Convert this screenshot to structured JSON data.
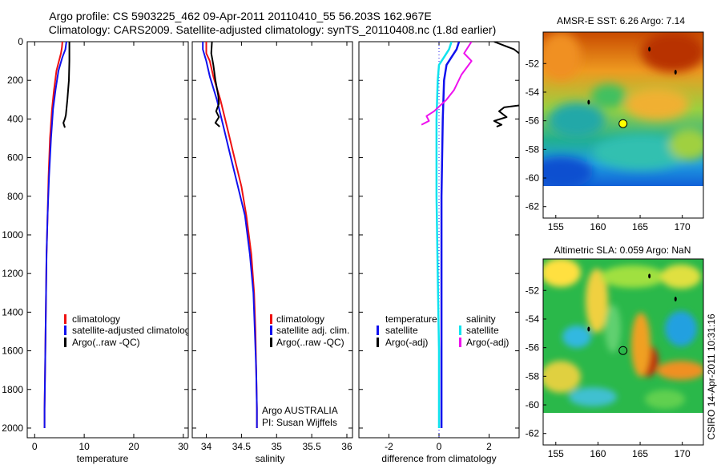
{
  "header": {
    "line1": "Argo profile: CS 5903225_462 09-Apr-2011 20110410_55 56.203S 162.967E",
    "line2": "Climatology: CARS2009. Satellite-adjusted climatology: synTS_20110408.nc (1.8d earlier)"
  },
  "colors": {
    "climatology": "#ee1111",
    "satellite": "#1111ee",
    "argo": "#000000",
    "satellite_salinity": "#11e3ee",
    "argo_salinity": "#ee11ee"
  },
  "chart_data": [
    {
      "type": "line",
      "id": "temperature",
      "xlabel": "temperature",
      "ylim": [
        2050,
        0
      ],
      "xlim": [
        -1.5,
        31
      ],
      "xticks": [
        0,
        10,
        20,
        30
      ],
      "yticks": [
        0,
        200,
        400,
        600,
        800,
        1000,
        1200,
        1400,
        1600,
        1800,
        2000
      ],
      "legend": [
        "climatology",
        "satellite-adjusted climatology",
        "Argo(..raw -QC)"
      ],
      "series": [
        {
          "name": "climatology",
          "points": [
            [
              5.6,
              0
            ],
            [
              5.5,
              30
            ],
            [
              5.3,
              60
            ],
            [
              4.9,
              100
            ],
            [
              4.4,
              150
            ],
            [
              3.9,
              250
            ],
            [
              3.5,
              350
            ],
            [
              3.1,
              500
            ],
            [
              2.8,
              700
            ],
            [
              2.6,
              900
            ],
            [
              2.4,
              1100
            ],
            [
              2.3,
              1300
            ],
            [
              2.2,
              1500
            ],
            [
              2.1,
              1700
            ],
            [
              2.0,
              1900
            ],
            [
              2.0,
              2000
            ]
          ]
        },
        {
          "name": "satellite-adjusted climatology",
          "points": [
            [
              6.4,
              0
            ],
            [
              6.2,
              40
            ],
            [
              5.6,
              80
            ],
            [
              4.8,
              150
            ],
            [
              4.2,
              250
            ],
            [
              3.7,
              350
            ],
            [
              3.3,
              500
            ],
            [
              2.9,
              700
            ],
            [
              2.6,
              900
            ],
            [
              2.4,
              1100
            ],
            [
              2.3,
              1300
            ],
            [
              2.2,
              1500
            ],
            [
              2.1,
              1700
            ],
            [
              2.0,
              1900
            ],
            [
              2.0,
              2000
            ]
          ]
        },
        {
          "name": "Argo(..raw -QC)",
          "points": [
            [
              7.0,
              0
            ],
            [
              7.0,
              100
            ],
            [
              6.9,
              200
            ],
            [
              6.6,
              300
            ],
            [
              6.3,
              380
            ],
            [
              6.1,
              400
            ],
            [
              5.8,
              420
            ],
            [
              6.1,
              445
            ]
          ]
        }
      ]
    },
    {
      "type": "line",
      "id": "salinity",
      "xlabel": "salinity",
      "ylim": [
        2050,
        0
      ],
      "xlim": [
        33.8,
        36.08
      ],
      "xticks": [
        34,
        34.5,
        35,
        35.5,
        36
      ],
      "legend": [
        "climatology",
        "satellite adj. clim.",
        "Argo(..raw -QC)"
      ],
      "annotation": [
        "Argo AUSTRALIA",
        "PI: Susan Wijffels"
      ],
      "series": [
        {
          "name": "climatology",
          "points": [
            [
              34.0,
              0
            ],
            [
              34.0,
              60
            ],
            [
              34.05,
              100
            ],
            [
              34.1,
              180
            ],
            [
              34.2,
              300
            ],
            [
              34.3,
              450
            ],
            [
              34.4,
              600
            ],
            [
              34.5,
              750
            ],
            [
              34.57,
              900
            ],
            [
              34.64,
              1100
            ],
            [
              34.68,
              1300
            ],
            [
              34.7,
              1500
            ],
            [
              34.71,
              1700
            ],
            [
              34.72,
              1900
            ],
            [
              34.72,
              2000
            ]
          ]
        },
        {
          "name": "satellite adj. clim.",
          "points": [
            [
              33.95,
              0
            ],
            [
              33.95,
              40
            ],
            [
              34.0,
              100
            ],
            [
              34.05,
              180
            ],
            [
              34.15,
              300
            ],
            [
              34.25,
              450
            ],
            [
              34.35,
              600
            ],
            [
              34.45,
              750
            ],
            [
              34.55,
              900
            ],
            [
              34.62,
              1100
            ],
            [
              34.67,
              1300
            ],
            [
              34.69,
              1500
            ],
            [
              34.71,
              1700
            ],
            [
              34.72,
              1900
            ],
            [
              34.72,
              2000
            ]
          ]
        },
        {
          "name": "Argo(..raw -QC)",
          "points": [
            [
              34.08,
              0
            ],
            [
              34.07,
              60
            ],
            [
              34.1,
              120
            ],
            [
              34.13,
              200
            ],
            [
              34.17,
              280
            ],
            [
              34.18,
              320
            ],
            [
              34.14,
              360
            ],
            [
              34.18,
              390
            ],
            [
              34.13,
              420
            ],
            [
              34.19,
              440
            ]
          ]
        }
      ]
    },
    {
      "type": "line",
      "id": "difference",
      "xlabel": "difference from climatology",
      "ylim": [
        2050,
        0
      ],
      "xlim": [
        -3.2,
        3.2
      ],
      "xticks": [
        -2,
        0,
        2
      ],
      "legend_temperature": {
        "title": "temperature",
        "items": [
          "satellite",
          "Argo(-adj)"
        ]
      },
      "legend_salinity": {
        "title": "salinity",
        "items": [
          "satellite",
          "Argo(-adj)"
        ]
      },
      "series": [
        {
          "name": "temperature satellite",
          "points": [
            [
              0.8,
              0
            ],
            [
              0.7,
              40
            ],
            [
              0.5,
              80
            ],
            [
              0.3,
              120
            ],
            [
              0.2,
              200
            ],
            [
              0.15,
              400
            ],
            [
              0.1,
              800
            ],
            [
              0.1,
              1200
            ],
            [
              0.1,
              1600
            ],
            [
              0.1,
              2000
            ]
          ]
        },
        {
          "name": "salinity satellite",
          "points": [
            [
              0.5,
              0
            ],
            [
              0.4,
              40
            ],
            [
              0.2,
              80
            ],
            [
              0.0,
              120
            ],
            [
              -0.05,
              200
            ],
            [
              -0.1,
              400
            ],
            [
              -0.1,
              800
            ],
            [
              -0.05,
              1200
            ],
            [
              0.0,
              1600
            ],
            [
              0.0,
              2000
            ]
          ]
        },
        {
          "name": "temperature Argo(-adj)",
          "points": [
            [
              2.2,
              0
            ],
            [
              2.6,
              20
            ],
            [
              3.0,
              40
            ],
            [
              3.2,
              60
            ]
          ]
        },
        {
          "name": "temperature Argo(-adj) deep",
          "points": [
            [
              3.2,
              330
            ],
            [
              2.6,
              340
            ],
            [
              2.4,
              360
            ],
            [
              2.7,
              390
            ],
            [
              2.2,
              410
            ],
            [
              2.5,
              430
            ],
            [
              2.3,
              440
            ]
          ]
        },
        {
          "name": "salinity Argo(-adj)",
          "points": [
            [
              1.3,
              0
            ],
            [
              1.2,
              20
            ],
            [
              1.0,
              60
            ],
            [
              1.3,
              100
            ],
            [
              0.9,
              170
            ],
            [
              0.6,
              250
            ],
            [
              0.3,
              300
            ],
            [
              -0.2,
              360
            ],
            [
              -0.5,
              385
            ],
            [
              -0.4,
              410
            ],
            [
              -0.7,
              430
            ]
          ]
        }
      ]
    }
  ],
  "maps": [
    {
      "id": "sst",
      "title": "AMSR-E SST: 6.26 Argo: 7.14",
      "lon_range": [
        153.5,
        172.5
      ],
      "lat_range": [
        -62.8,
        -49.8
      ],
      "xticks": [
        155,
        160,
        165,
        170
      ],
      "yticks": [
        -52,
        -54,
        -56,
        -58,
        -60,
        -62
      ],
      "marker": {
        "lon": 162.97,
        "lat": -56.2,
        "fill": "#ffff00"
      }
    },
    {
      "id": "sla",
      "title": "Altimetric SLA: 0.059 Argo: NaN",
      "lon_range": [
        153.5,
        172.5
      ],
      "lat_range": [
        -62.8,
        -49.8
      ],
      "xticks": [
        155,
        160,
        165,
        170
      ],
      "yticks": [
        -52,
        -54,
        -56,
        -58,
        -60,
        -62
      ],
      "marker": {
        "lon": 162.97,
        "lat": -56.2,
        "fill": "none"
      }
    }
  ],
  "credit": "CSIRO 14-Apr-2011 10:31:16"
}
